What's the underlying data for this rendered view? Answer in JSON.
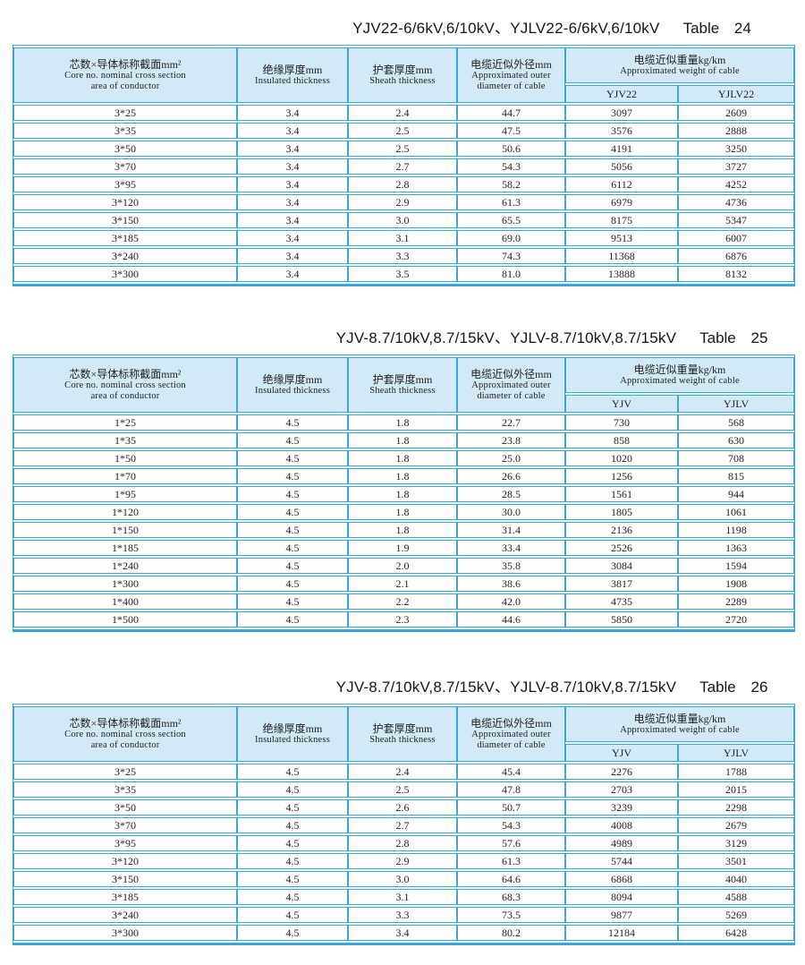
{
  "colors": {
    "border": "#36a8de",
    "header_bg": "#d2eaf8",
    "text": "#1f1f1f",
    "page_bg": "#ffffff"
  },
  "tables": [
    {
      "title": "YJV22-6/6kV,6/10kV、YJLV22-6/6kV,6/10kV",
      "table_label": "Table 24",
      "header": {
        "col1_zh": "芯数×导体标称截面mm²",
        "col1_en1": "Core no. nominal cross section",
        "col1_en2": "area of conductor",
        "col2_zh": "绝缘厚度mm",
        "col2_en": "Insulated thickness",
        "col3_zh": "护套厚度mm",
        "col3_en": "Sheath thickness",
        "col4_zh": "电缆近似外径mm",
        "col4_en1": "Approximated outer",
        "col4_en2": "diameter of cable",
        "col5_zh": "电缆近似重量kg/km",
        "col5_en": "Approximated weight of cable",
        "sub1": "YJV22",
        "sub2": "YJLV22"
      },
      "rows": [
        [
          "3*25",
          "3.4",
          "2.4",
          "44.7",
          "3097",
          "2609"
        ],
        [
          "3*35",
          "3.4",
          "2.5",
          "47.5",
          "3576",
          "2888"
        ],
        [
          "3*50",
          "3.4",
          "2.5",
          "50.6",
          "4191",
          "3250"
        ],
        [
          "3*70",
          "3.4",
          "2.7",
          "54.3",
          "5056",
          "3727"
        ],
        [
          "3*95",
          "3.4",
          "2.8",
          "58.2",
          "6112",
          "4252"
        ],
        [
          "3*120",
          "3.4",
          "2.9",
          "61.3",
          "6979",
          "4736"
        ],
        [
          "3*150",
          "3.4",
          "3.0",
          "65.5",
          "8175",
          "5347"
        ],
        [
          "3*185",
          "3.4",
          "3.1",
          "69.0",
          "9513",
          "6007"
        ],
        [
          "3*240",
          "3.4",
          "3.3",
          "74.3",
          "11368",
          "6876"
        ],
        [
          "3*300",
          "3.4",
          "3.5",
          "81.0",
          "13888",
          "8132"
        ]
      ]
    },
    {
      "title": "YJV-8.7/10kV,8.7/15kV、YJLV-8.7/10kV,8.7/15kV",
      "table_label": "Table 25",
      "header": {
        "col1_zh": "芯数×导体标称截面mm²",
        "col1_en1": "Core no. nominal cross section",
        "col1_en2": "area of conductor",
        "col2_zh": "绝缘厚度mm",
        "col2_en": "Insulated thickness",
        "col3_zh": "护套厚度mm",
        "col3_en": "Sheath thickness",
        "col4_zh": "电缆近似外径mm",
        "col4_en1": "Approximated outer",
        "col4_en2": "diameter of cable",
        "col5_zh": "电缆近似重量kg/km",
        "col5_en": "Approximated weight of cable",
        "sub1": "YJV",
        "sub2": "YJLV"
      },
      "rows": [
        [
          "1*25",
          "4.5",
          "1.8",
          "22.7",
          "730",
          "568"
        ],
        [
          "1*35",
          "4.5",
          "1.8",
          "23.8",
          "858",
          "630"
        ],
        [
          "1*50",
          "4.5",
          "1.8",
          "25.0",
          "1020",
          "708"
        ],
        [
          "1*70",
          "4.5",
          "1.8",
          "26.6",
          "1256",
          "815"
        ],
        [
          "1*95",
          "4.5",
          "1.8",
          "28.5",
          "1561",
          "944"
        ],
        [
          "1*120",
          "4.5",
          "1.8",
          "30.0",
          "1805",
          "1061"
        ],
        [
          "1*150",
          "4.5",
          "1.8",
          "31.4",
          "2136",
          "1198"
        ],
        [
          "1*185",
          "4.5",
          "1.9",
          "33.4",
          "2526",
          "1363"
        ],
        [
          "1*240",
          "4.5",
          "2.0",
          "35.8",
          "3084",
          "1594"
        ],
        [
          "1*300",
          "4.5",
          "2.1",
          "38.6",
          "3817",
          "1908"
        ],
        [
          "1*400",
          "4.5",
          "2.2",
          "42.0",
          "4735",
          "2289"
        ],
        [
          "1*500",
          "4.5",
          "2.3",
          "44.6",
          "5850",
          "2720"
        ]
      ]
    },
    {
      "title": "YJV-8.7/10kV,8.7/15kV、YJLV-8.7/10kV,8.7/15kV",
      "table_label": "Table 26",
      "header": {
        "col1_zh": "芯数×导体标称截面mm²",
        "col1_en1": "Core no. nominal cross section",
        "col1_en2": "area of conductor",
        "col2_zh": "绝缘厚度mm",
        "col2_en": "Insulated thickness",
        "col3_zh": "护套厚度mm",
        "col3_en": "Sheath thickness",
        "col4_zh": "电缆近似外径mm",
        "col4_en1": "Approximated outer",
        "col4_en2": "diameter of cable",
        "col5_zh": "电缆近似重量kg/km",
        "col5_en": "Approximated weight of cable",
        "sub1": "YJV",
        "sub2": "YJLV"
      },
      "rows": [
        [
          "3*25",
          "4.5",
          "2.4",
          "45.4",
          "2276",
          "1788"
        ],
        [
          "3*35",
          "4.5",
          "2.5",
          "47.8",
          "2703",
          "2015"
        ],
        [
          "3*50",
          "4.5",
          "2.6",
          "50.7",
          "3239",
          "2298"
        ],
        [
          "3*70",
          "4.5",
          "2.7",
          "54.3",
          "4008",
          "2679"
        ],
        [
          "3*95",
          "4.5",
          "2.8",
          "57.6",
          "4989",
          "3129"
        ],
        [
          "3*120",
          "4.5",
          "2.9",
          "61.3",
          "5744",
          "3501"
        ],
        [
          "3*150",
          "4.5",
          "3.0",
          "64.6",
          "6868",
          "4040"
        ],
        [
          "3*185",
          "4.5",
          "3.1",
          "68.3",
          "8094",
          "4588"
        ],
        [
          "3*240",
          "4.5",
          "3.3",
          "73.5",
          "9877",
          "5269"
        ],
        [
          "3*300",
          "4.5",
          "3.4",
          "80.2",
          "12184",
          "6428"
        ]
      ]
    }
  ]
}
